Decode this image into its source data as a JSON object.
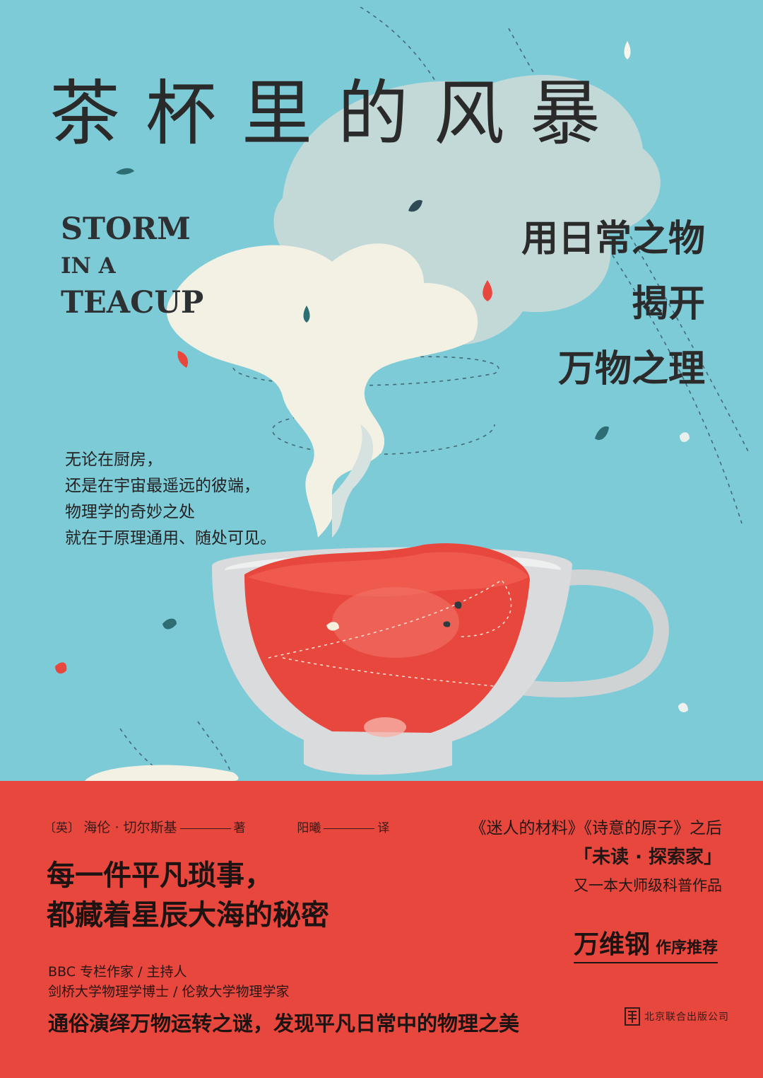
{
  "cover": {
    "title": "茶杯里的风暴",
    "title_en": [
      "STORM",
      "IN A",
      "TEACUP"
    ],
    "subtitle": [
      "用日常之物",
      "揭开",
      "万物之理"
    ],
    "blurb": [
      "无论在厨房，",
      "还是在宇宙最遥远的彼端，",
      "物理学的奇妙之处",
      "就在于原理通用、随处可见。"
    ]
  },
  "credits": {
    "nationality": "〔英〕",
    "author": "海伦 · 切尔斯基",
    "author_role": "著",
    "translator": "阳曦",
    "translator_role": "译"
  },
  "tagline": [
    "每一件平凡琐事，",
    "都藏着星辰大海的秘密"
  ],
  "author_bio": [
    "BBC 专栏作家 / 主持人",
    "剑桥大学物理学博士 / 伦敦大学物理学家"
  ],
  "bottom_line": "通俗演绎万物运转之谜，发现平凡日常中的物理之美",
  "series": {
    "line1": "《迷人的材料》《诗意的原子》之后",
    "line2": "「未读 · 探索家」",
    "line3": "又一本大师级科普作品"
  },
  "preface": {
    "name": "万维钢",
    "desc": "作序推荐"
  },
  "publisher": {
    "name": "北京联合出版公司",
    "logo_icon": "publisher-logo-icon"
  },
  "colors": {
    "background": "#7ecbd8",
    "band": "#e8473d",
    "tea": "#e8473d",
    "steam": "#f3f0e4",
    "cloud": "#c3d9d8",
    "cup": "#d9d9d9",
    "text": "#2a2a2a"
  }
}
